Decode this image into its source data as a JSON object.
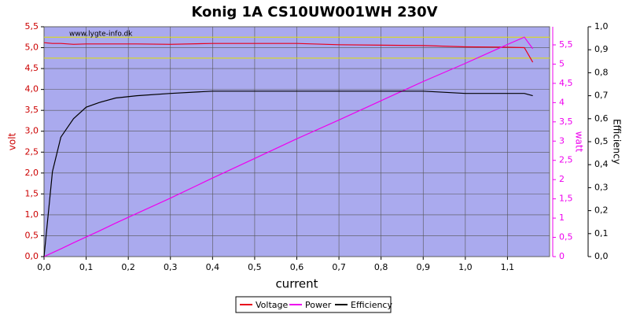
{
  "chart_data": {
    "type": "line",
    "title": "Konig 1A CS10UW001WH 230V",
    "watermark": "www.lygte-info.dk",
    "xlabel": "current",
    "ylabel": "volt",
    "y2label": "watt",
    "y3label": "Efficiency",
    "x": [
      0,
      0.02,
      0.04,
      0.07,
      0.1,
      0.13,
      0.17,
      0.22,
      0.3,
      0.4,
      0.5,
      0.6,
      0.7,
      0.8,
      0.9,
      1.0,
      1.1,
      1.14,
      1.16
    ],
    "series": [
      {
        "name": "Voltage",
        "color": "#e8001c",
        "axis": "y",
        "values": [
          5.12,
          5.1,
          5.1,
          5.08,
          5.09,
          5.09,
          5.09,
          5.09,
          5.08,
          5.1,
          5.1,
          5.1,
          5.07,
          5.06,
          5.05,
          5.02,
          5.01,
          5.0,
          4.65
        ]
      },
      {
        "name": "Power",
        "color": "#ee00ee",
        "axis": "y2",
        "values": [
          0,
          0.1,
          0.2,
          0.36,
          0.51,
          0.66,
          0.87,
          1.12,
          1.52,
          2.04,
          2.55,
          3.06,
          3.55,
          4.05,
          4.55,
          5.02,
          5.51,
          5.7,
          5.4
        ]
      },
      {
        "name": "Efficiency",
        "color": "#000000",
        "axis": "y3",
        "values": [
          0,
          0.37,
          0.52,
          0.6,
          0.65,
          0.67,
          0.69,
          0.7,
          0.71,
          0.72,
          0.72,
          0.72,
          0.72,
          0.72,
          0.72,
          0.71,
          0.71,
          0.71,
          0.7
        ]
      }
    ],
    "reference_lines": [
      5.25,
      4.75
    ],
    "reference_color": "#e0e000",
    "xlim": [
      0,
      1.2
    ],
    "xticks": [
      {
        "value": 0,
        "label": "0,0"
      },
      {
        "value": 0.1,
        "label": "0,1"
      },
      {
        "value": 0.2,
        "label": "0,2"
      },
      {
        "value": 0.3,
        "label": "0,3"
      },
      {
        "value": 0.4,
        "label": "0,4"
      },
      {
        "value": 0.5,
        "label": "0,5"
      },
      {
        "value": 0.6,
        "label": "0,6"
      },
      {
        "value": 0.7,
        "label": "0,7"
      },
      {
        "value": 0.8,
        "label": "0,8"
      },
      {
        "value": 0.9,
        "label": "0,9"
      },
      {
        "value": 1.0,
        "label": "1,0"
      },
      {
        "value": 1.1,
        "label": "1,1"
      }
    ],
    "ylim": [
      0,
      5.5
    ],
    "yticks": [
      {
        "value": 0,
        "label": "0,0"
      },
      {
        "value": 0.5,
        "label": "0,5"
      },
      {
        "value": 1.0,
        "label": "1,0"
      },
      {
        "value": 1.5,
        "label": "1,5"
      },
      {
        "value": 2.0,
        "label": "2,0"
      },
      {
        "value": 2.5,
        "label": "2,5"
      },
      {
        "value": 3.0,
        "label": "3,0"
      },
      {
        "value": 3.5,
        "label": "3,5"
      },
      {
        "value": 4.0,
        "label": "4,0"
      },
      {
        "value": 4.5,
        "label": "4,5"
      },
      {
        "value": 5.0,
        "label": "5,0"
      },
      {
        "value": 5.5,
        "label": "5,5"
      }
    ],
    "y2lim": [
      0,
      5.97
    ],
    "y2ticks": [
      0,
      {
        "value": 0.5,
        "label": "0,5"
      },
      1,
      {
        "value": 1.5,
        "label": "1,5"
      },
      2,
      {
        "value": 2.5,
        "label": "2,5"
      },
      3,
      {
        "value": 3.5,
        "label": "3,5"
      },
      4,
      {
        "value": 4.5,
        "label": "4,5"
      },
      5,
      {
        "value": 5.5,
        "label": "5,5"
      }
    ],
    "y3lim": [
      0,
      1.0
    ],
    "y3ticks": [
      {
        "value": 0,
        "label": "0,0"
      },
      {
        "value": 0.1,
        "label": "0,1"
      },
      {
        "value": 0.2,
        "label": "0,2"
      },
      {
        "value": 0.3,
        "label": "0,3"
      },
      {
        "value": 0.4,
        "label": "0,4"
      },
      {
        "value": 0.5,
        "label": "0,5"
      },
      {
        "value": 0.6,
        "label": "0,6"
      },
      {
        "value": 0.7,
        "label": "0,7"
      },
      {
        "value": 0.8,
        "label": "0,8"
      },
      {
        "value": 0.9,
        "label": "0,9"
      },
      {
        "value": 1.0,
        "label": "1,0"
      }
    ],
    "grid": true
  }
}
